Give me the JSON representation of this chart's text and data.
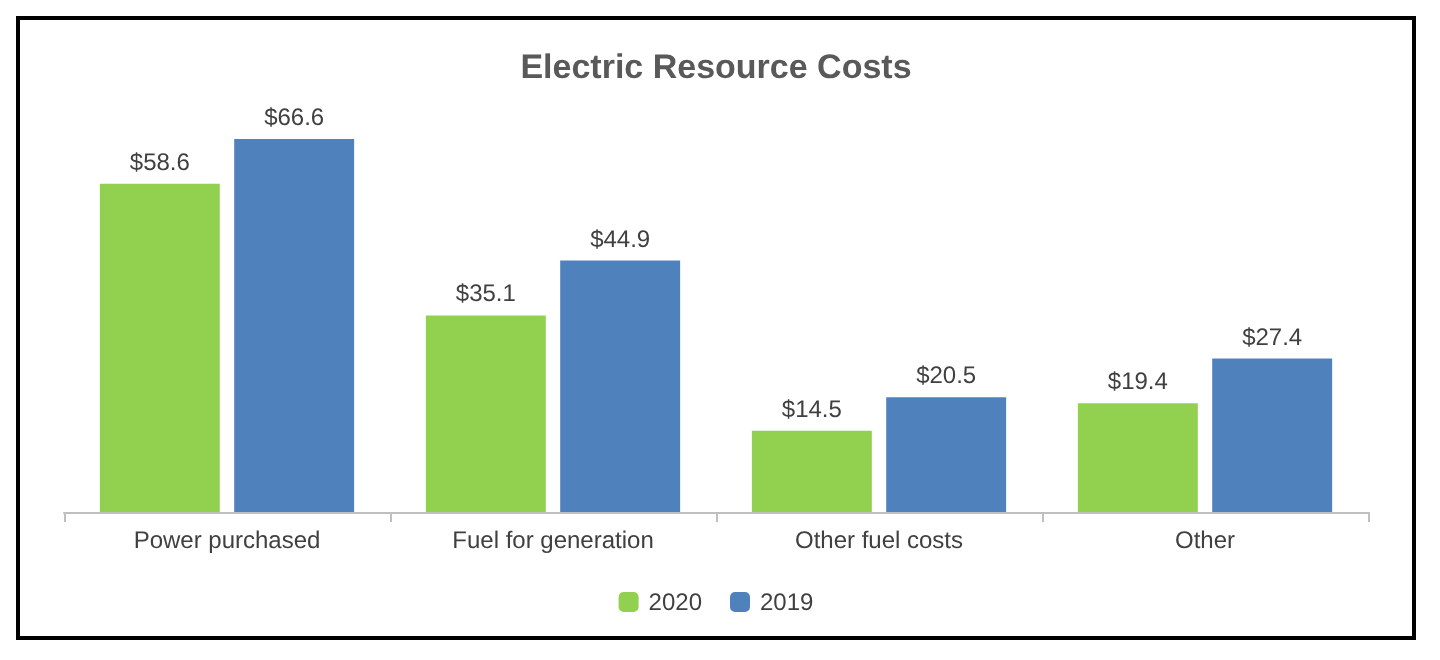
{
  "chart_data": {
    "type": "bar",
    "title": "Electric Resource Costs",
    "categories": [
      "Power purchased",
      "Fuel for generation",
      "Other fuel costs",
      "Other"
    ],
    "series": [
      {
        "name": "2020",
        "color": "#92d050",
        "values": [
          58.6,
          35.1,
          14.5,
          19.4
        ],
        "value_labels": [
          "$58.6",
          "$35.1",
          "$14.5",
          "$19.4"
        ]
      },
      {
        "name": "2019",
        "color": "#4f81bd",
        "values": [
          66.6,
          44.9,
          20.5,
          27.4
        ],
        "value_labels": [
          "$66.6",
          "$44.9",
          "$20.5",
          "$27.4"
        ]
      }
    ],
    "legend": "bottom",
    "grid": false
  }
}
